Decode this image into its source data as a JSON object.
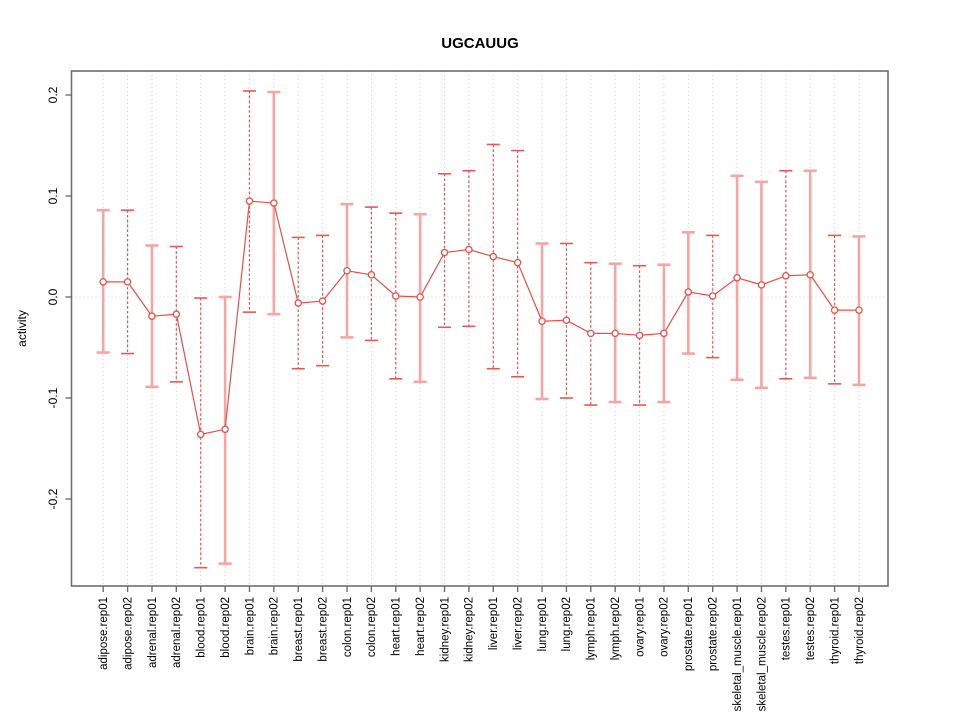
{
  "window": {
    "background": "#ffffff"
  },
  "chart_data": {
    "type": "line",
    "subtype": "points-with-error-bars",
    "title": "UGCAUUG",
    "xlabel": "",
    "ylabel": "activity",
    "legend": "none",
    "grid": "vertical dotted line at every category; horizontal dotted line at y=0",
    "ylim": [
      -0.287,
      0.223
    ],
    "ytick_values": [
      -0.2,
      -0.1,
      0.0,
      0.1,
      0.2
    ],
    "ytick_labels": [
      "-0.2",
      "-0.1",
      "0.0",
      "0.1",
      "0.2"
    ],
    "categories": [
      "adipose.rep01",
      "adipose.rep02",
      "adrenal.rep01",
      "adrenal.rep02",
      "blood.rep01",
      "blood.rep02",
      "brain.rep01",
      "brain.rep02",
      "breast.rep01",
      "breast.rep02",
      "colon.rep01",
      "colon.rep02",
      "heart.rep01",
      "heart.rep02",
      "kidney.rep01",
      "kidney.rep02",
      "liver.rep01",
      "liver.rep02",
      "lung.rep01",
      "lung.rep02",
      "lymph.rep01",
      "lymph.rep02",
      "ovary.rep01",
      "ovary.rep02",
      "prostate.rep01",
      "prostate.rep02",
      "skeletal_muscle.rep01",
      "skeletal_muscle.rep02",
      "testes.rep01",
      "testes.rep02",
      "thyroid.rep01",
      "thyroid.rep02"
    ],
    "series": [
      {
        "name": "activity",
        "values": [
          0.015,
          0.015,
          -0.019,
          -0.017,
          -0.136,
          -0.131,
          0.095,
          0.093,
          -0.006,
          -0.004,
          0.026,
          0.022,
          0.001,
          0.0,
          0.044,
          0.047,
          0.04,
          0.034,
          -0.024,
          -0.023,
          -0.036,
          -0.036,
          -0.038,
          -0.036,
          0.005,
          0.001,
          0.019,
          0.012,
          0.021,
          0.022,
          -0.013,
          -0.013
        ],
        "lower": [
          -0.055,
          -0.056,
          -0.089,
          -0.084,
          -0.268,
          -0.264,
          -0.015,
          -0.017,
          -0.071,
          -0.068,
          -0.04,
          -0.043,
          -0.081,
          -0.084,
          -0.03,
          -0.029,
          -0.071,
          -0.079,
          -0.101,
          -0.1,
          -0.107,
          -0.104,
          -0.107,
          -0.104,
          -0.056,
          -0.06,
          -0.082,
          -0.09,
          -0.081,
          -0.08,
          -0.086,
          -0.087
        ],
        "upper": [
          0.086,
          0.086,
          0.051,
          0.05,
          -0.001,
          0.0,
          0.204,
          0.203,
          0.059,
          0.061,
          0.092,
          0.089,
          0.083,
          0.082,
          0.122,
          0.125,
          0.151,
          0.145,
          0.053,
          0.053,
          0.034,
          0.033,
          0.031,
          0.032,
          0.064,
          0.061,
          0.12,
          0.114,
          0.125,
          0.125,
          0.061,
          0.06
        ]
      }
    ],
    "error_bar_styles": [
      "thick",
      "thin",
      "thick",
      "thin",
      "thin",
      "thick",
      "thin",
      "thick",
      "thin",
      "thin",
      "thick",
      "thin",
      "thin",
      "thick",
      "thin",
      "thin",
      "thin",
      "thin",
      "thick",
      "thin",
      "thin",
      "thick",
      "thin",
      "thick",
      "thick",
      "thin",
      "thick",
      "thick",
      "thin",
      "thick",
      "thin",
      "thick"
    ],
    "colors": {
      "point_line": "#e8504a",
      "error_bar_thick": "#f3a6a4",
      "error_bar_thin": "#e25a55",
      "grid": "#cfcfcf",
      "frame": "#6e6e6e",
      "point_fill": "#ffffff",
      "text": "#000000"
    }
  }
}
